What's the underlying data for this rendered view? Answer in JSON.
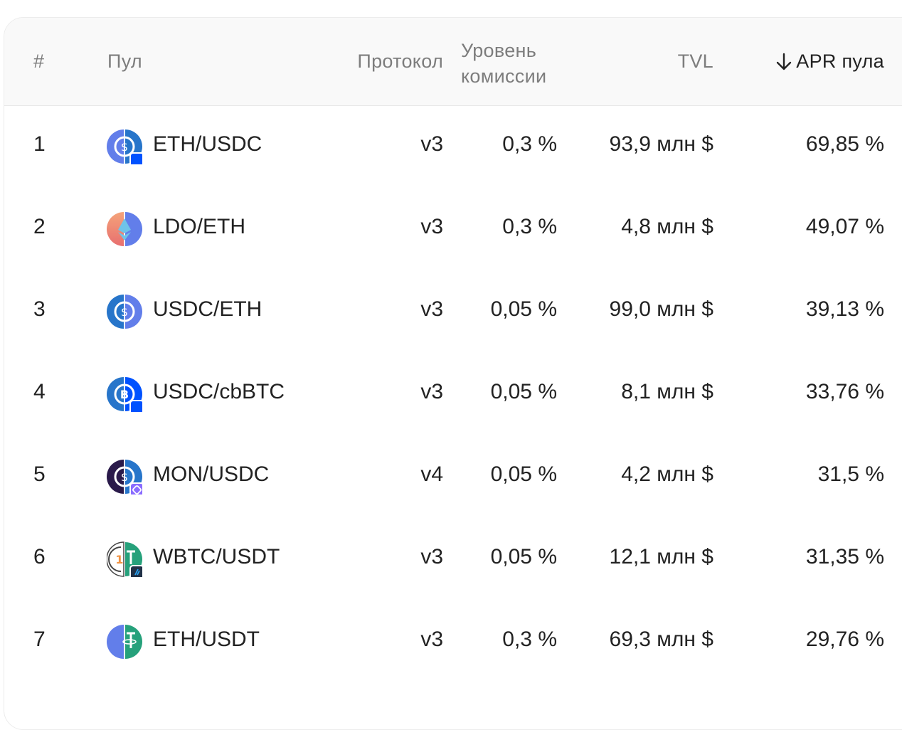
{
  "header": {
    "num": "#",
    "pool": "Пул",
    "protocol": "Протокол",
    "fee_line1": "Уровень",
    "fee_line2": "комиссии",
    "tvl": "TVL",
    "apr": "APR пула"
  },
  "colors": {
    "eth": "#627eea",
    "usdc": "#2775ca",
    "usdt": "#26a17b",
    "base_badge": "#0052ff",
    "mon": "#6e54ff",
    "wbtc": "#f09242"
  },
  "rows": [
    {
      "num": "1",
      "pool": "ETH/USDC",
      "protocol": "v3",
      "fee": "0,3 %",
      "tvl": "93,9 млн $",
      "apr": "69,85 %",
      "icon": "eth-usdc-icon",
      "badge": "base-chain-badge"
    },
    {
      "num": "2",
      "pool": "LDO/ETH",
      "protocol": "v3",
      "fee": "0,3 %",
      "tvl": "4,8 млн $",
      "apr": "49,07 %",
      "icon": "ldo-eth-icon",
      "badge": ""
    },
    {
      "num": "3",
      "pool": "USDC/ETH",
      "protocol": "v3",
      "fee": "0,05 %",
      "tvl": "99,0 млн $",
      "apr": "39,13 %",
      "icon": "usdc-eth-icon",
      "badge": ""
    },
    {
      "num": "4",
      "pool": "USDC/cbBTC",
      "protocol": "v3",
      "fee": "0,05 %",
      "tvl": "8,1 млн $",
      "apr": "33,76 %",
      "icon": "usdc-cbbtc-icon",
      "badge": "base-chain-badge"
    },
    {
      "num": "5",
      "pool": "MON/USDC",
      "protocol": "v4",
      "fee": "0,05 %",
      "tvl": "4,2 млн $",
      "apr": "31,5 %",
      "icon": "mon-usdc-icon",
      "badge": "monad-chain-badge"
    },
    {
      "num": "6",
      "pool": "WBTC/USDT",
      "protocol": "v3",
      "fee": "0,05 %",
      "tvl": "12,1 млн $",
      "apr": "31,35 %",
      "icon": "wbtc-usdt-icon",
      "badge": "arbitrum-chain-badge"
    },
    {
      "num": "7",
      "pool": "ETH/USDT",
      "protocol": "v3",
      "fee": "0,3 %",
      "tvl": "69,3 млн $",
      "apr": "29,76 %",
      "icon": "eth-usdt-icon",
      "badge": ""
    }
  ]
}
